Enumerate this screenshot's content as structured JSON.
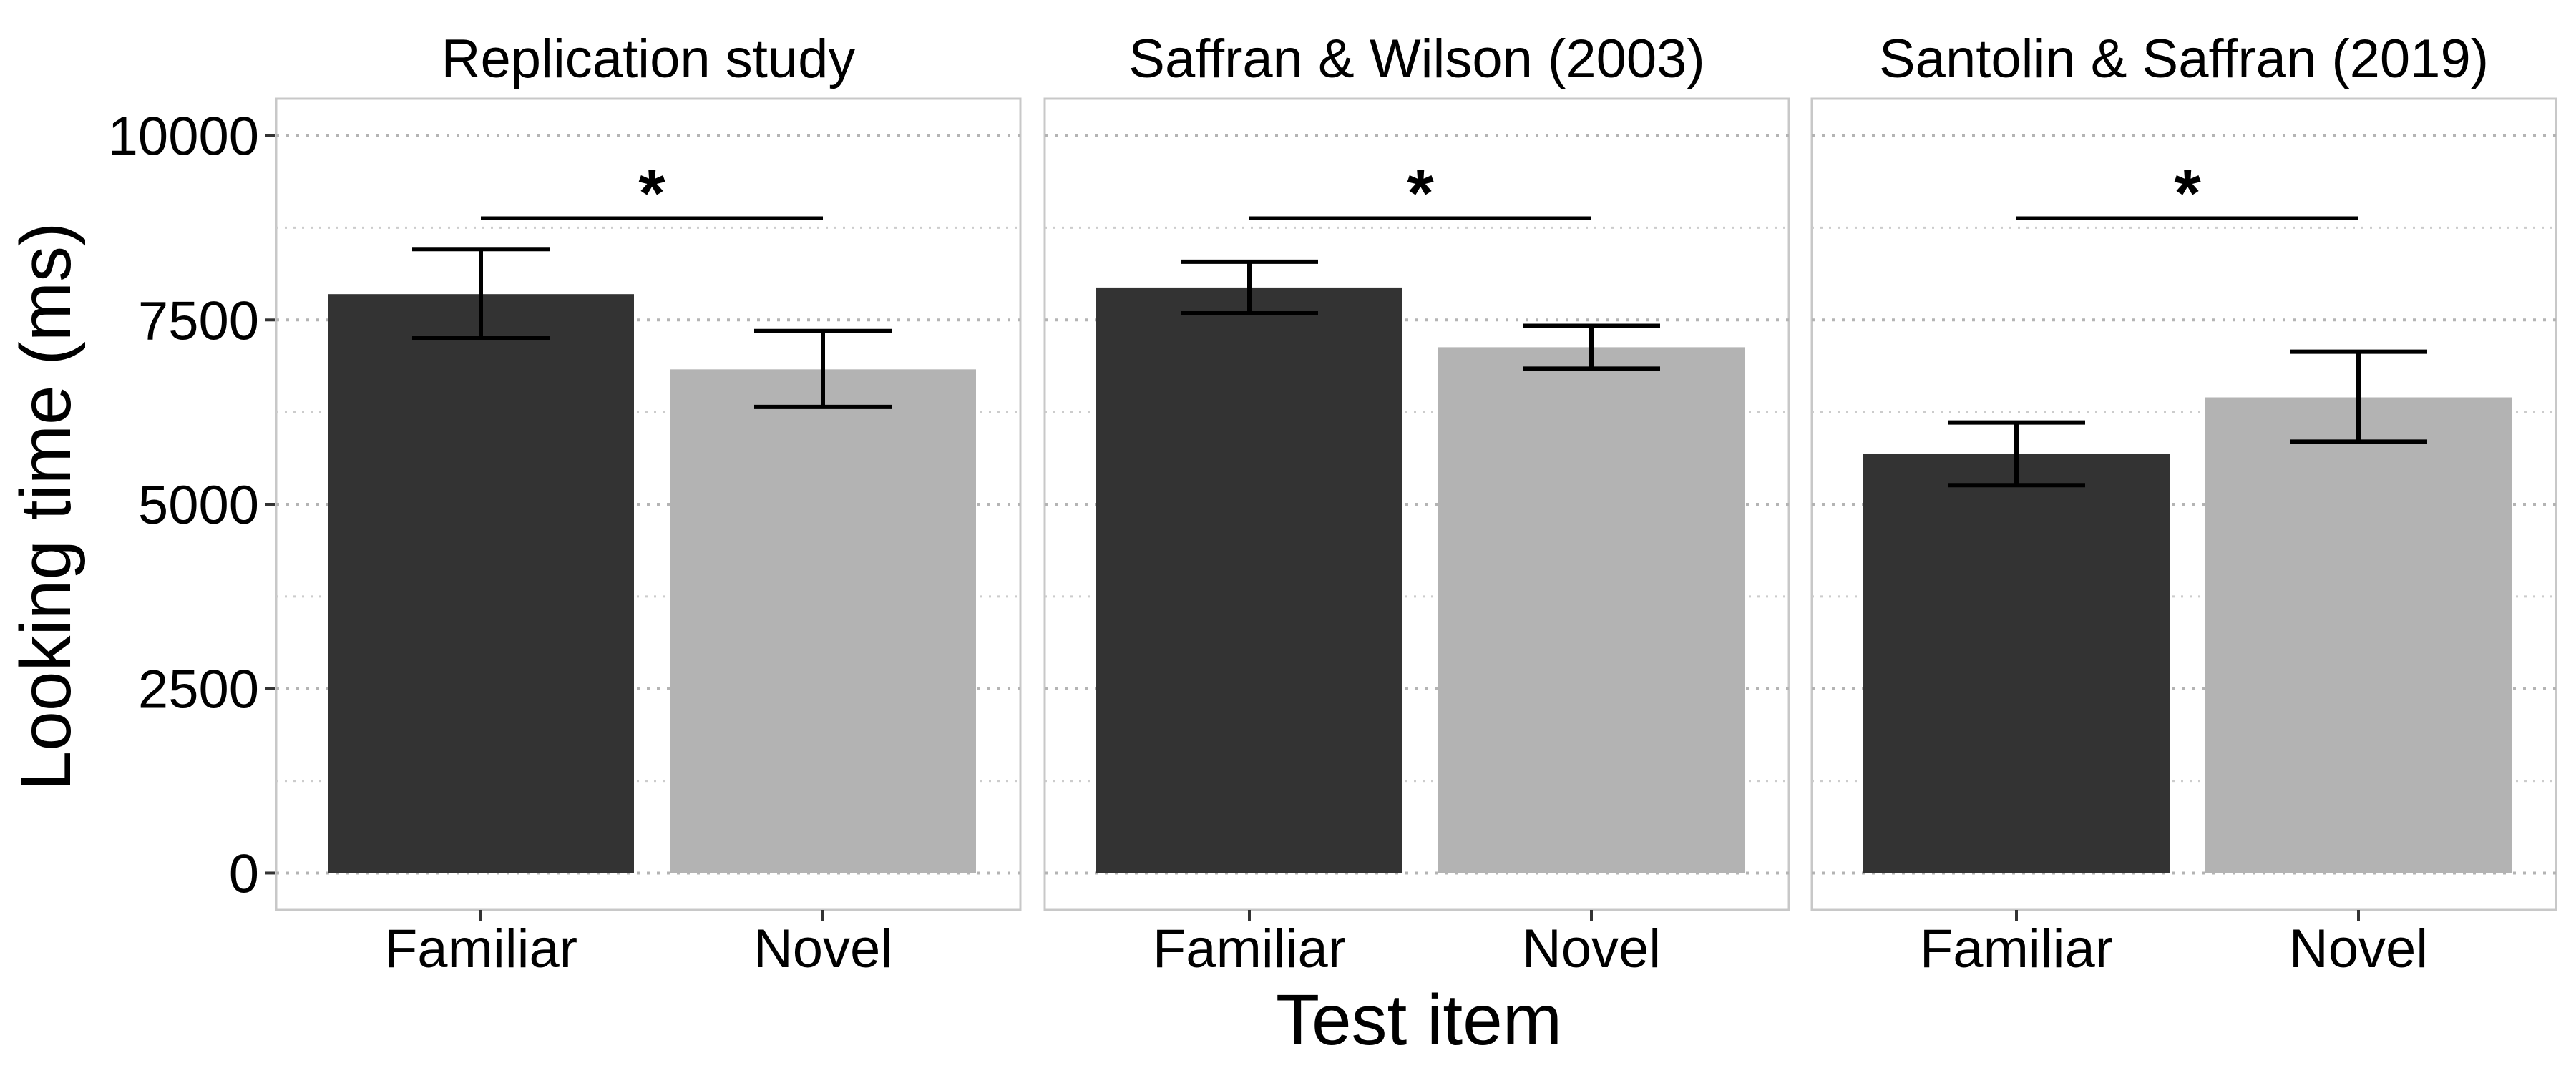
{
  "chart_data": {
    "type": "bar",
    "xlabel": "Test item",
    "ylabel": "Looking time (ms)",
    "ylim": [
      -500,
      10500
    ],
    "yticks": [
      0,
      2500,
      5000,
      7500,
      10000
    ],
    "y_tick_labels": [
      "0",
      "2500",
      "5000",
      "7500",
      "10000"
    ],
    "grid": "dotted, major and minor horizontal",
    "legend": "none",
    "categories": [
      "Familiar",
      "Novel"
    ],
    "colors": {
      "Familiar": "#333333",
      "Novel": "#b3b3b3"
    },
    "panels": [
      {
        "title": "Replication study",
        "values": [
          7850,
          6830
        ],
        "error_low": [
          7250,
          6320
        ],
        "error_high": [
          8460,
          7350
        ],
        "significance": {
          "label": "*",
          "y": 8880
        }
      },
      {
        "title": "Saffran & Wilson (2003)",
        "values": [
          7940,
          7130
        ],
        "error_low": [
          7590,
          6840
        ],
        "error_high": [
          8290,
          7420
        ],
        "significance": {
          "label": "*",
          "y": 8880
        }
      },
      {
        "title": "Santolin & Saffran (2019)",
        "values": [
          5680,
          6450
        ],
        "error_low": [
          5260,
          5850
        ],
        "error_high": [
          6110,
          7070
        ],
        "significance": {
          "label": "*",
          "y": 8880
        }
      }
    ]
  }
}
